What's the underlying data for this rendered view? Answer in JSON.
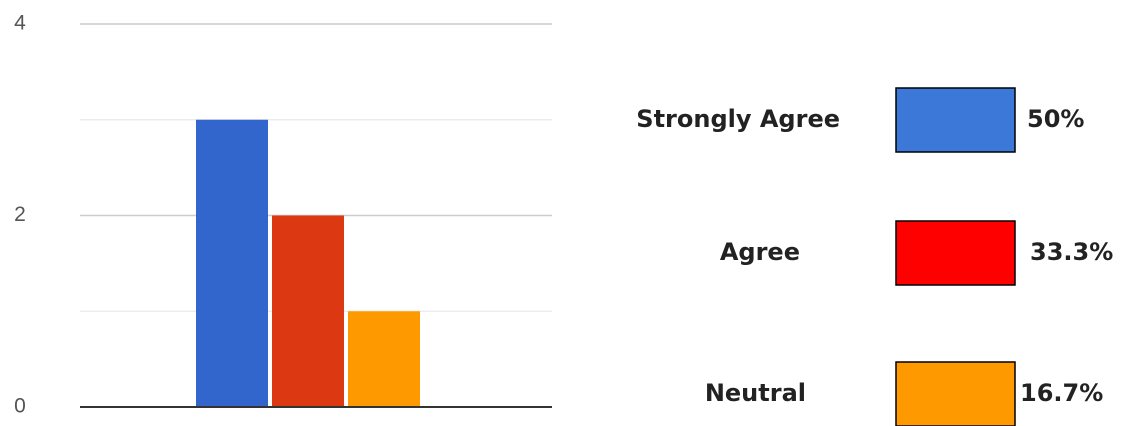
{
  "chart_data": {
    "type": "bar",
    "series": [
      {
        "name": "Strongly Agree",
        "color": "#3366cc",
        "legend_color": "#3c78d8",
        "values": [
          3
        ]
      },
      {
        "name": "Agree",
        "color": "#dc3912",
        "legend_color": "#ff0000",
        "values": [
          2
        ]
      },
      {
        "name": "Neutral",
        "color": "#ff9900",
        "legend_color": "#ff9900",
        "values": [
          1
        ]
      }
    ],
    "shares": {
      "values": [
        50,
        33.3,
        16.7
      ],
      "value_labels": [
        "50%",
        "33.3%",
        "16.7%"
      ]
    },
    "ylim": [
      0,
      4
    ],
    "yticks": [
      0,
      2,
      4
    ],
    "minor_gridlines": [
      1,
      3
    ],
    "grid": true,
    "legend": "right"
  }
}
